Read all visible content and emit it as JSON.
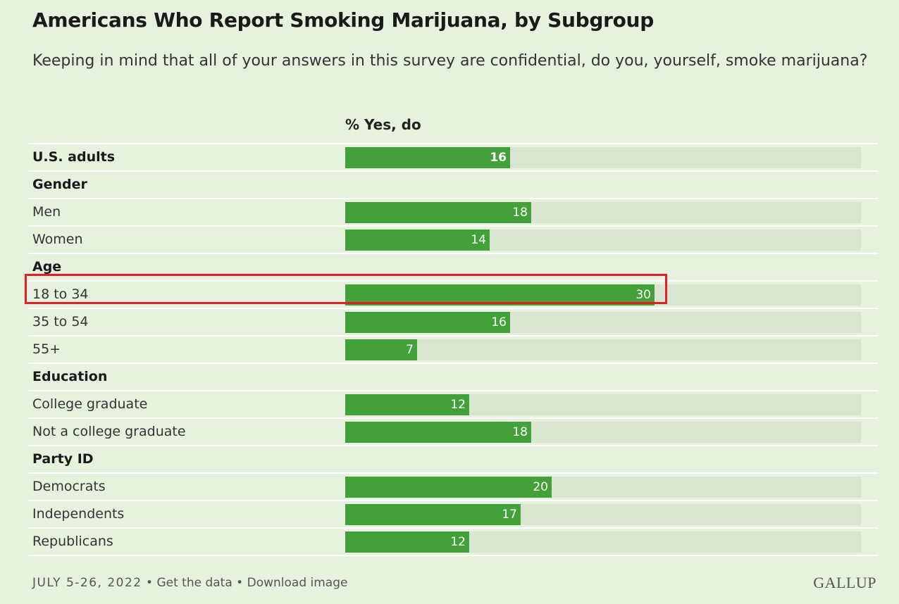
{
  "title": "Americans Who Report Smoking Marijuana, by Subgroup",
  "subtitle": "Keeping in mind that all of your answers in this survey are confidential, do you, yourself, smoke marijuana?",
  "column_header": "% Yes, do",
  "footer": {
    "date": "JULY 5-26, 2022",
    "separator": "•",
    "get_data": "Get the data",
    "download": "Download image"
  },
  "brand": "GALLUP",
  "colors": {
    "background": "#e6f2de",
    "bar": "#43a13a",
    "track": "#d8e5d0",
    "highlight": "#e31e24"
  },
  "highlighted_row": "18 to 34",
  "chart_data": {
    "type": "bar",
    "orientation": "horizontal",
    "title": "Americans Who Report Smoking Marijuana, by Subgroup",
    "subtitle": "Keeping in mind that all of your answers in this survey are confidential, do you, yourself, smoke marijuana?",
    "series": [
      {
        "name": "% Yes, do"
      }
    ],
    "xlim": [
      0,
      50
    ],
    "grid": false,
    "rows": [
      {
        "label": "U.S. adults",
        "kind": "total",
        "value": 16
      },
      {
        "label": "Gender",
        "kind": "header"
      },
      {
        "label": "Men",
        "kind": "item",
        "value": 18
      },
      {
        "label": "Women",
        "kind": "item",
        "value": 14
      },
      {
        "label": "Age",
        "kind": "header"
      },
      {
        "label": "18 to 34",
        "kind": "item",
        "value": 30
      },
      {
        "label": "35 to 54",
        "kind": "item",
        "value": 16
      },
      {
        "label": "55+",
        "kind": "item",
        "value": 7
      },
      {
        "label": "Education",
        "kind": "header"
      },
      {
        "label": "College graduate",
        "kind": "item",
        "value": 12
      },
      {
        "label": "Not a college graduate",
        "kind": "item",
        "value": 18
      },
      {
        "label": "Party ID",
        "kind": "header"
      },
      {
        "label": "Democrats",
        "kind": "item",
        "value": 20
      },
      {
        "label": "Independents",
        "kind": "item",
        "value": 17
      },
      {
        "label": "Republicans",
        "kind": "item",
        "value": 12
      }
    ]
  }
}
